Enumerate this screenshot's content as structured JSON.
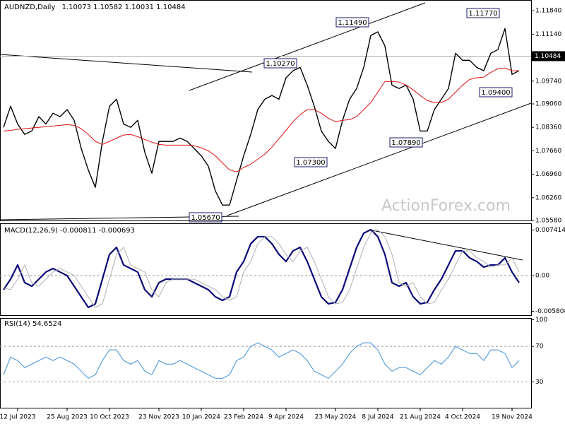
{
  "chart_data": [
    {
      "type": "line",
      "title": "AUDNZD,Daily",
      "ohlc": [
        1.10073,
        1.10582,
        1.10031,
        1.10484
      ],
      "current_value": 1.10484,
      "watermark": "ActionForex.com",
      "ylim": [
        1.0556,
        1.1216
      ],
      "yticks": [
        {
          "value": 1.1184,
          "label": "1.11840"
        },
        {
          "value": 1.1114,
          "label": "1.11140"
        },
        {
          "value": 1.0974,
          "label": "1.09740"
        },
        {
          "value": 1.0906,
          "label": "1.09060"
        },
        {
          "value": 1.0836,
          "label": "1.08360"
        },
        {
          "value": 1.0766,
          "label": "1.07660"
        },
        {
          "value": 1.0696,
          "label": "1.06960"
        },
        {
          "value": 1.0626,
          "label": "1.06260"
        },
        {
          "value": 1.0558,
          "label": "1.05580"
        }
      ],
      "annotations": [
        "1.11490",
        "1.11770",
        "1.10270",
        "1.09400",
        "1.07890",
        "1.07300",
        "1.05670"
      ],
      "series": [
        {
          "name": "price",
          "color": "#000000",
          "values": [
            1.0836,
            1.0899,
            1.0846,
            1.0815,
            1.0825,
            1.0868,
            1.0846,
            1.0878,
            1.0868,
            1.0889,
            1.0857,
            1.0773,
            1.0709,
            1.0657,
            1.0794,
            1.0899,
            1.092,
            1.0846,
            1.0836,
            1.0857,
            1.0762,
            1.0699,
            1.0794,
            1.0794,
            1.0794,
            1.0804,
            1.0794,
            1.0773,
            1.0751,
            1.072,
            1.0646,
            1.0604,
            1.0604,
            1.0678,
            1.0751,
            1.0815,
            1.0889,
            1.092,
            1.0931,
            1.092,
            1.0984,
            1.1005,
            1.1015,
            1.0962,
            1.0899,
            1.0825,
            1.0794,
            1.0773,
            1.0857,
            1.092,
            1.0952,
            1.1015,
            1.111,
            1.1121,
            1.1079,
            1.0962,
            1.0952,
            1.0962,
            1.092,
            1.0825,
            1.0825,
            1.0889,
            1.092,
            1.0952,
            1.1057,
            1.1036,
            1.1036,
            1.1015,
            1.1005,
            1.1057,
            1.1068,
            1.1131,
            1.0994,
            1.1005
          ]
        },
        {
          "name": "ma",
          "color": "#e01010",
          "values": [
            1.0825,
            1.0827,
            1.083,
            1.0832,
            1.0834,
            1.0836,
            1.0838,
            1.084,
            1.0842,
            1.0844,
            1.0842,
            1.0832,
            1.0815,
            1.0794,
            1.0785,
            1.0794,
            1.0804,
            1.0813,
            1.0815,
            1.0808,
            1.08,
            1.0792,
            1.0785,
            1.0783,
            1.0783,
            1.0783,
            1.0783,
            1.0781,
            1.0775,
            1.0766,
            1.0751,
            1.073,
            1.0709,
            1.0703,
            1.0716,
            1.0726,
            1.0741,
            1.0756,
            1.0777,
            1.0802,
            1.0827,
            1.0853,
            1.0874,
            1.0889,
            1.0889,
            1.0878,
            1.0863,
            1.0853,
            1.0857,
            1.0859,
            1.0868,
            1.0889,
            1.091,
            1.0941,
            1.0973,
            1.0973,
            1.0971,
            1.0962,
            1.0948,
            1.0931,
            1.0916,
            1.091,
            1.091,
            1.092,
            1.0941,
            1.0962,
            1.0979,
            1.0984,
            1.0986,
            1.1,
            1.1011,
            1.1013,
            1.1005,
            1.1005
          ]
        }
      ]
    },
    {
      "type": "line",
      "title": "MACD(12,26,9)",
      "indicator_values": [
        -0.000811,
        -0.000693
      ],
      "ylim": [
        -0.00656,
        0.00851
      ],
      "yticks": [
        0.007414,
        {
          "value": 0,
          "label": "0.00"
        },
        -0.005808
      ],
      "series": [
        {
          "name": "macd",
          "color": "#0a0a78",
          "values": [
            -0.0023,
            -0.00058,
            0.00173,
            -0.00115,
            -0.00173,
            -0.00058,
            0.00058,
            0.00115,
            0.00058,
            0,
            -0.00173,
            -0.00345,
            -0.00518,
            -0.0046,
            -0.00058,
            0.00345,
            0.0046,
            0.00173,
            0.00115,
            0.00058,
            -0.0023,
            -0.00345,
            -0.00115,
            -0.00058,
            -0.00058,
            -0.00058,
            -0.00058,
            -0.00115,
            -0.00173,
            -0.0023,
            -0.00345,
            -0.00403,
            -0.00345,
            0.00058,
            0.0023,
            0.00518,
            0.00633,
            0.00633,
            0.00518,
            0.00345,
            0.0023,
            0.00403,
            0.0046,
            0.0023,
            -0.00058,
            -0.00345,
            -0.0046,
            -0.00437,
            -0.0023,
            0.00115,
            0.0046,
            0.0069,
            0.00748,
            0.00633,
            0.00345,
            -0.00115,
            -0.00173,
            -0.00115,
            -0.00345,
            -0.0046,
            -0.00437,
            -0.0023,
            -0.00058,
            0.00173,
            0.00403,
            0.00403,
            0.00288,
            0.0023,
            0.00138,
            0.00173,
            0.00173,
            0.00288,
            0.00058,
            -0.00115
          ]
        },
        {
          "name": "signal",
          "color": "#b0b0b0",
          "values": [
            -0.002,
            -0.0023,
            -0.00058,
            0.00173,
            -0.00115,
            -0.00173,
            -0.00058,
            0.00058,
            0.00115,
            0.00058,
            0,
            -0.00173,
            -0.00345,
            -0.00518,
            -0.0046,
            -0.00058,
            0.00345,
            0.0046,
            0.00173,
            0.00115,
            0.00058,
            -0.0023,
            -0.00345,
            -0.00115,
            -0.00058,
            -0.00058,
            -0.00058,
            -0.00058,
            -0.00115,
            -0.00173,
            -0.0023,
            -0.00345,
            -0.00403,
            -0.00345,
            0.00058,
            0.0023,
            0.00518,
            0.00633,
            0.00633,
            0.00518,
            0.00345,
            0.0023,
            0.00403,
            0.0046,
            0.0023,
            -0.00058,
            -0.00345,
            -0.0046,
            -0.00437,
            -0.0023,
            0.00115,
            0.0046,
            0.0069,
            0.00748,
            0.00633,
            0.00345,
            -0.00115,
            -0.00173,
            -0.00115,
            -0.00345,
            -0.0046,
            -0.00437,
            -0.0023,
            -0.00058,
            0.00173,
            0.00403,
            0.00403,
            0.00288,
            0.0023,
            0.00138,
            0.00173,
            0.00173,
            0.00288,
            0.00058
          ]
        }
      ]
    },
    {
      "type": "line",
      "title": "RSI(14)",
      "indicator_values": [
        54.6524
      ],
      "ylim": [
        0,
        102
      ],
      "yticks": [
        100,
        70,
        30
      ],
      "grid_dashed": [
        70,
        30
      ],
      "categories": [
        null,
        null,
        "12 Jul 2023",
        null,
        null,
        null,
        null,
        null,
        null,
        "25 Aug 2023",
        null,
        null,
        null,
        null,
        null,
        "10 Oct 2023",
        null,
        null,
        null,
        null,
        null,
        null,
        "23 Nov 2023",
        null,
        null,
        null,
        null,
        null,
        "10 Jan 2024",
        null,
        null,
        null,
        null,
        null,
        "23 Feb 2024",
        null,
        null,
        null,
        null,
        null,
        "9 Apr 2024",
        null,
        null,
        null,
        null,
        null,
        null,
        "23 May 2024",
        null,
        null,
        null,
        null,
        null,
        "8 Jul 2024",
        null,
        null,
        null,
        null,
        null,
        "21 Aug 2024",
        null,
        null,
        null,
        null,
        null,
        "4 Oct 2024",
        null,
        null,
        null,
        null,
        null,
        null,
        "19 Nov 2024",
        null
      ],
      "series": [
        {
          "name": "rsi",
          "color": "#3f8fd8",
          "values": [
            38,
            58,
            54,
            46,
            50,
            54,
            58,
            54,
            58,
            54,
            50,
            42,
            34,
            38,
            54,
            66,
            66,
            54,
            50,
            54,
            42,
            38,
            54,
            50,
            50,
            54,
            50,
            46,
            42,
            38,
            34,
            34,
            38,
            54,
            58,
            70,
            74,
            70,
            66,
            58,
            62,
            66,
            62,
            54,
            42,
            38,
            34,
            42,
            50,
            62,
            70,
            74,
            74,
            66,
            50,
            42,
            46,
            46,
            42,
            38,
            46,
            54,
            50,
            58,
            70,
            66,
            62,
            62,
            54,
            66,
            66,
            62,
            46,
            54
          ]
        }
      ]
    }
  ]
}
